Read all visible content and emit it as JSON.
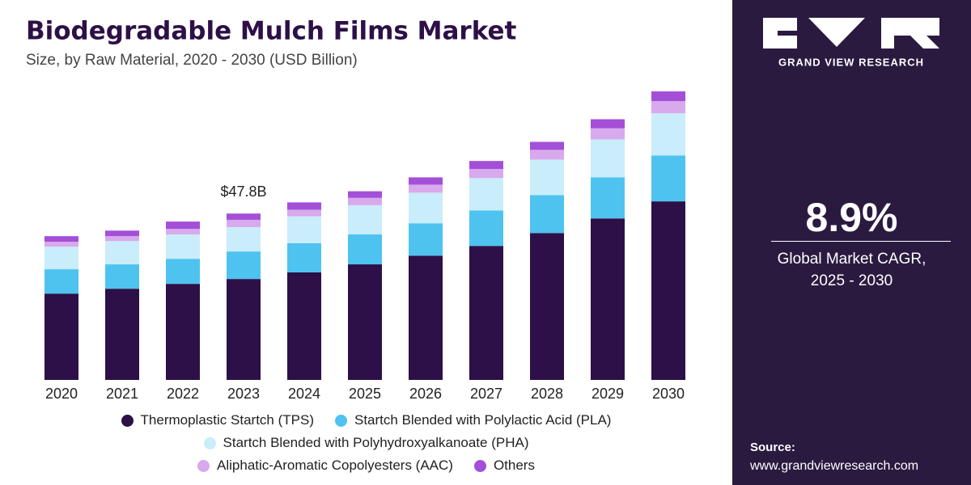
{
  "chart_data": {
    "type": "stacked_bar",
    "title": "Biodegradable Mulch Films Market",
    "subtitle": "Size, by Raw Material, 2020 - 2030 (USD Billion)",
    "categories": [
      "2020",
      "2021",
      "2022",
      "2023",
      "2024",
      "2025",
      "2026",
      "2027",
      "2028",
      "2029",
      "2030"
    ],
    "series": [
      {
        "name": "Thermoplastic Startch (TPS)",
        "color": "#2d1047",
        "values": [
          24.8,
          26.2,
          27.6,
          29.0,
          30.9,
          33.2,
          35.7,
          38.5,
          42.2,
          46.4,
          51.3
        ]
      },
      {
        "name": "Startch Blended with Polylactic Acid (PLA)",
        "color": "#4fc3f0",
        "values": [
          7.0,
          7.0,
          7.2,
          7.9,
          8.4,
          8.6,
          9.3,
          10.2,
          10.9,
          11.8,
          13.2
        ]
      },
      {
        "name": "Startch Blended with Polyhydroxyalkanoate (PHA)",
        "color": "#c9edfb",
        "values": [
          6.5,
          6.7,
          7.0,
          7.0,
          7.7,
          8.4,
          8.8,
          9.3,
          10.2,
          10.9,
          12.1
        ]
      },
      {
        "name": "Aliphatic-Aromatic Copolyesters (AAC)",
        "color": "#d8a9ec",
        "values": [
          1.4,
          1.4,
          1.6,
          2.1,
          1.9,
          2.1,
          2.3,
          2.6,
          2.8,
          3.2,
          3.5
        ]
      },
      {
        "name": "Others",
        "color": "#a44fd8",
        "values": [
          1.6,
          1.6,
          2.1,
          1.8,
          2.1,
          1.9,
          2.1,
          2.3,
          2.3,
          2.6,
          2.8
        ]
      }
    ],
    "annotations": [
      {
        "text": "$47.8B",
        "x": "2023",
        "value": 47.8
      }
    ],
    "ylim": [
      0,
      85
    ],
    "grid": false,
    "legend": "bottom"
  },
  "side_panel": {
    "brand": "GRAND VIEW RESEARCH",
    "metric": "8.9%",
    "metric_label": "Global Market CAGR,",
    "metric_period": "2025 - 2030",
    "source_label": "Source:",
    "source_url": "www.grandviewresearch.com"
  }
}
